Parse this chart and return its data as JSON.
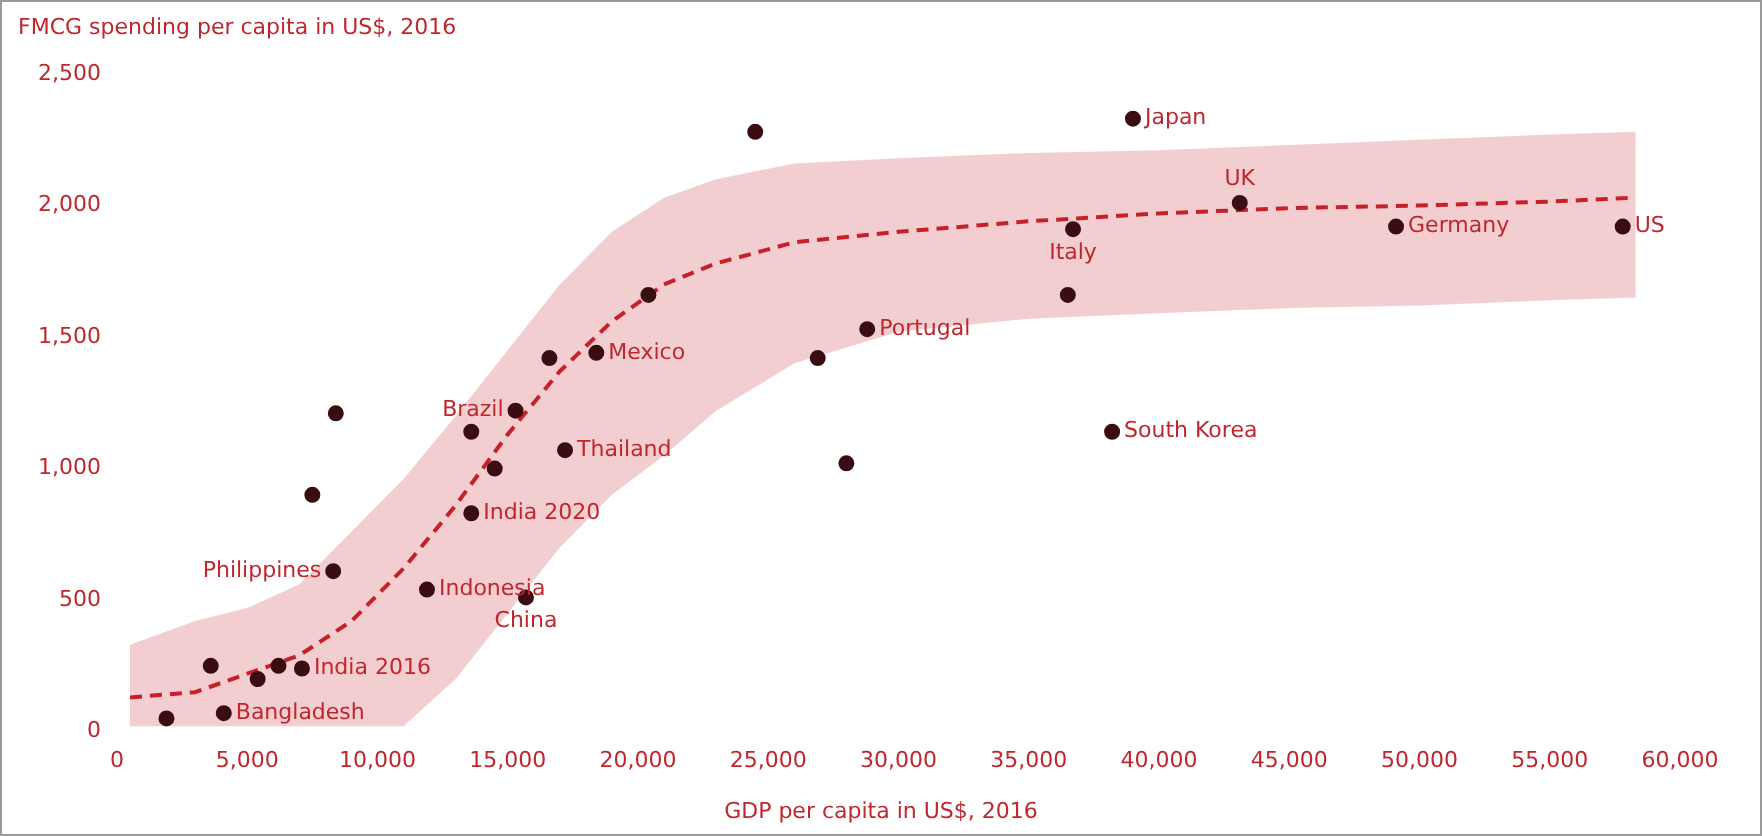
{
  "chart_data": {
    "type": "scatter",
    "ylabel": "FMCG spending per capita in US$, 2016",
    "xlabel": "GDP per capita in US$, 2016",
    "xlim": [
      0,
      60000
    ],
    "ylim": [
      0,
      2500
    ],
    "xticks": [
      {
        "value": 0,
        "label": "0"
      },
      {
        "value": 5000,
        "label": "5,000"
      },
      {
        "value": 10000,
        "label": "10,000"
      },
      {
        "value": 15000,
        "label": "15,000"
      },
      {
        "value": 20000,
        "label": "20,000"
      },
      {
        "value": 25000,
        "label": "25,000"
      },
      {
        "value": 30000,
        "label": "30,000"
      },
      {
        "value": 35000,
        "label": "35,000"
      },
      {
        "value": 40000,
        "label": "40,000"
      },
      {
        "value": 45000,
        "label": "45,000"
      },
      {
        "value": 50000,
        "label": "50,000"
      },
      {
        "value": 55000,
        "label": "55,000"
      },
      {
        "value": 60000,
        "label": "60,000"
      }
    ],
    "yticks": [
      {
        "value": 0,
        "label": "0"
      },
      {
        "value": 500,
        "label": "500"
      },
      {
        "value": 1000,
        "label": "1,000"
      },
      {
        "value": 1500,
        "label": "1,500"
      },
      {
        "value": 2000,
        "label": "2,000"
      },
      {
        "value": 2500,
        "label": "2,500"
      }
    ],
    "series": [
      {
        "type": "line",
        "color": "#c8202a",
        "line_style": "dashed",
        "marker": "none",
        "x": [
          500,
          3000,
          5000,
          7000,
          9000,
          11000,
          13000,
          15000,
          17000,
          19000,
          21000,
          23000,
          26000,
          30000,
          35000,
          40000,
          45000,
          50000,
          55000,
          58300
        ],
        "values": [
          130,
          150,
          220,
          290,
          420,
          620,
          860,
          1130,
          1370,
          1560,
          1700,
          1780,
          1860,
          1900,
          1940,
          1970,
          1990,
          2000,
          2015,
          2030
        ],
        "lower": [
          20,
          20,
          20,
          20,
          20,
          20,
          200,
          450,
          700,
          900,
          1050,
          1220,
          1400,
          1520,
          1570,
          1590,
          1610,
          1620,
          1640,
          1650
        ],
        "upper": [
          330,
          420,
          470,
          560,
          760,
          960,
          1200,
          1450,
          1700,
          1900,
          2030,
          2100,
          2160,
          2180,
          2200,
          2210,
          2230,
          2250,
          2270,
          2280
        ]
      },
      {
        "color": "#3a0d12",
        "marker": "circle",
        "x": [
          1900,
          3600,
          4100,
          5400,
          6200,
          7100,
          7500,
          8300,
          8400,
          11900,
          13600,
          13600,
          14500,
          15300,
          15700,
          16600,
          17200,
          18400,
          20400,
          24500,
          26900,
          28000,
          28800,
          36500,
          36700,
          38200,
          39000,
          43100,
          49100,
          57800
        ],
        "values": [
          50,
          250,
          70,
          200,
          250,
          240,
          900,
          610,
          1210,
          540,
          830,
          1140,
          1000,
          1220,
          510,
          1420,
          1070,
          1440,
          1660,
          2280,
          1420,
          1020,
          1530,
          1660,
          1910,
          1140,
          2330,
          2010,
          1920,
          1920
        ]
      }
    ],
    "annotations": [
      {
        "text": "Bangladesh",
        "x": 4100,
        "y": 70
      },
      {
        "text": "India 2016",
        "x": 7100,
        "y": 240
      },
      {
        "text": "Philippines",
        "x": 8300,
        "y": 610
      },
      {
        "text": "Indonesia",
        "x": 11900,
        "y": 540
      },
      {
        "text": "India 2020",
        "x": 13600,
        "y": 830
      },
      {
        "text": "Brazil",
        "x": 15300,
        "y": 1220
      },
      {
        "text": "China",
        "x": 15700,
        "y": 510
      },
      {
        "text": "Thailand",
        "x": 17200,
        "y": 1070
      },
      {
        "text": "Mexico",
        "x": 18400,
        "y": 1440
      },
      {
        "text": "Portugal",
        "x": 28800,
        "y": 1530
      },
      {
        "text": "Italy",
        "x": 36700,
        "y": 1910
      },
      {
        "text": "South Korea",
        "x": 38200,
        "y": 1140
      },
      {
        "text": "Japan",
        "x": 39000,
        "y": 2330
      },
      {
        "text": "UK",
        "x": 43100,
        "y": 2010
      },
      {
        "text": "Germany",
        "x": 49100,
        "y": 1920
      },
      {
        "text": "US",
        "x": 57800,
        "y": 1920
      }
    ]
  }
}
